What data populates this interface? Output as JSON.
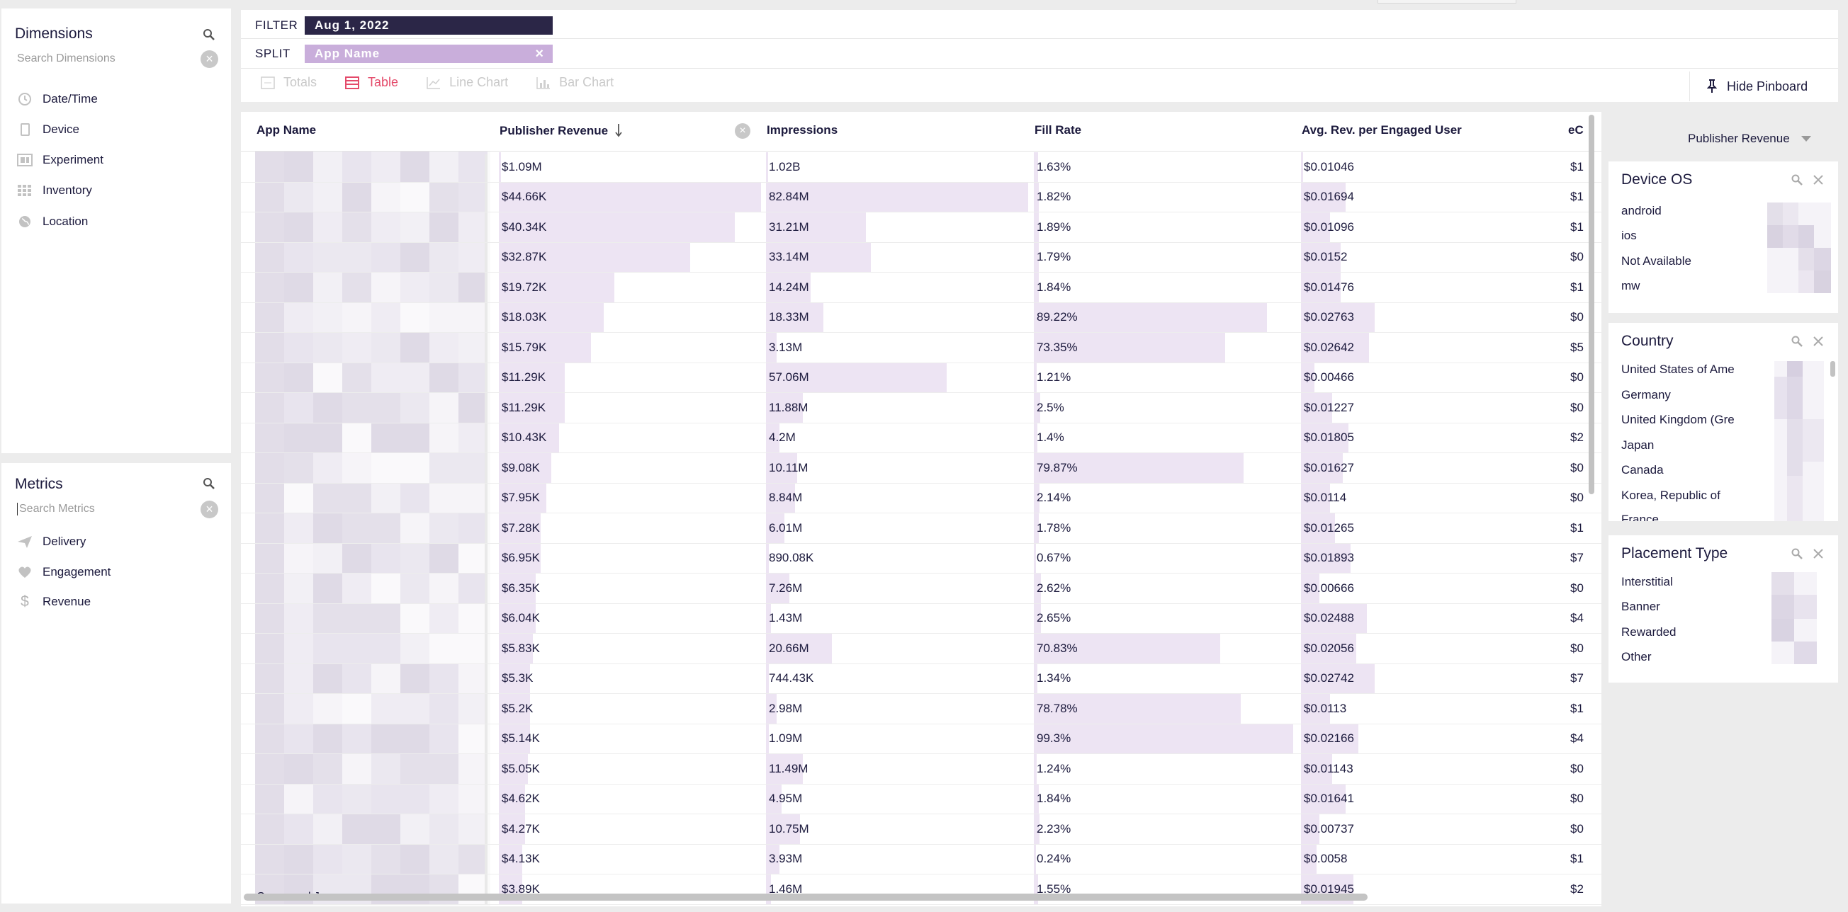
{
  "dimensions": {
    "title": "Dimensions",
    "search_placeholder": "Search Dimensions",
    "items": [
      {
        "label": "Date/Time",
        "icon": "clock-icon"
      },
      {
        "label": "Device",
        "icon": "device-icon"
      },
      {
        "label": "Experiment",
        "icon": "experiment-icon"
      },
      {
        "label": "Inventory",
        "icon": "grid-icon"
      },
      {
        "label": "Location",
        "icon": "globe-icon"
      }
    ]
  },
  "metrics": {
    "title": "Metrics",
    "search_placeholder": "Search Metrics",
    "items": [
      {
        "label": "Delivery",
        "icon": "send-icon"
      },
      {
        "label": "Engagement",
        "icon": "heart-icon"
      },
      {
        "label": "Revenue",
        "icon": "dollar-icon"
      }
    ]
  },
  "topbar": {
    "filter_label": "FILTER",
    "filter_value": "Aug 1, 2022",
    "split_label": "SPLIT",
    "split_value": "App Name",
    "viz_tabs": [
      {
        "label": "Totals",
        "active": false
      },
      {
        "label": "Table",
        "active": true
      },
      {
        "label": "Line Chart",
        "active": false
      },
      {
        "label": "Bar Chart",
        "active": false
      }
    ],
    "hide_pinboard": "Hide Pinboard"
  },
  "table": {
    "headers": [
      "App Name",
      "Publisher Revenue",
      "Impressions",
      "Fill Rate",
      "Avg. Rev. per Engaged User",
      "eC"
    ],
    "last_app_name": "Crossword Jam",
    "rows": [
      {
        "rev": "$1.09M",
        "imp": "1.02B",
        "fill": "1.63%",
        "avg": "$0.01046",
        "ec": "$1",
        "rev_frac": 0,
        "imp_frac": 0,
        "fill_frac": 0.016,
        "avg_frac": 0
      },
      {
        "rev": "$44.66K",
        "imp": "82.84M",
        "fill": "1.82%",
        "avg": "$0.01694",
        "ec": "$1",
        "rev_frac": 1.0,
        "imp_frac": 1.0,
        "fill_frac": 0.018,
        "avg_frac": 0.17
      },
      {
        "rev": "$40.34K",
        "imp": "31.21M",
        "fill": "1.89%",
        "avg": "$0.01096",
        "ec": "$1",
        "rev_frac": 0.9,
        "imp_frac": 0.38,
        "fill_frac": 0.019,
        "avg_frac": 0.11
      },
      {
        "rev": "$32.87K",
        "imp": "33.14M",
        "fill": "1.79%",
        "avg": "$0.0152",
        "ec": "$0",
        "rev_frac": 0.73,
        "imp_frac": 0.4,
        "fill_frac": 0.018,
        "avg_frac": 0.15
      },
      {
        "rev": "$19.72K",
        "imp": "14.24M",
        "fill": "1.84%",
        "avg": "$0.01476",
        "ec": "$1",
        "rev_frac": 0.44,
        "imp_frac": 0.17,
        "fill_frac": 0.018,
        "avg_frac": 0.15
      },
      {
        "rev": "$18.03K",
        "imp": "18.33M",
        "fill": "89.22%",
        "avg": "$0.02763",
        "ec": "$0",
        "rev_frac": 0.4,
        "imp_frac": 0.22,
        "fill_frac": 0.89,
        "avg_frac": 0.28
      },
      {
        "rev": "$15.79K",
        "imp": "3.13M",
        "fill": "73.35%",
        "avg": "$0.02642",
        "ec": "$5",
        "rev_frac": 0.35,
        "imp_frac": 0.04,
        "fill_frac": 0.73,
        "avg_frac": 0.26
      },
      {
        "rev": "$11.29K",
        "imp": "57.06M",
        "fill": "1.21%",
        "avg": "$0.00466",
        "ec": "$0",
        "rev_frac": 0.25,
        "imp_frac": 0.69,
        "fill_frac": 0.012,
        "avg_frac": 0.05
      },
      {
        "rev": "$11.29K",
        "imp": "11.88M",
        "fill": "2.5%",
        "avg": "$0.01227",
        "ec": "$0",
        "rev_frac": 0.25,
        "imp_frac": 0.14,
        "fill_frac": 0.025,
        "avg_frac": 0.12
      },
      {
        "rev": "$10.43K",
        "imp": "4.2M",
        "fill": "1.4%",
        "avg": "$0.01805",
        "ec": "$2",
        "rev_frac": 0.23,
        "imp_frac": 0.05,
        "fill_frac": 0.014,
        "avg_frac": 0.18
      },
      {
        "rev": "$9.08K",
        "imp": "10.11M",
        "fill": "79.87%",
        "avg": "$0.01627",
        "ec": "$0",
        "rev_frac": 0.2,
        "imp_frac": 0.12,
        "fill_frac": 0.8,
        "avg_frac": 0.16
      },
      {
        "rev": "$7.95K",
        "imp": "8.84M",
        "fill": "2.14%",
        "avg": "$0.0114",
        "ec": "$0",
        "rev_frac": 0.18,
        "imp_frac": 0.11,
        "fill_frac": 0.021,
        "avg_frac": 0.11
      },
      {
        "rev": "$7.28K",
        "imp": "6.01M",
        "fill": "1.78%",
        "avg": "$0.01265",
        "ec": "$1",
        "rev_frac": 0.16,
        "imp_frac": 0.07,
        "fill_frac": 0.018,
        "avg_frac": 0.13
      },
      {
        "rev": "$6.95K",
        "imp": "890.08K",
        "fill": "0.67%",
        "avg": "$0.01893",
        "ec": "$7",
        "rev_frac": 0.16,
        "imp_frac": 0.01,
        "fill_frac": 0.007,
        "avg_frac": 0.19
      },
      {
        "rev": "$6.35K",
        "imp": "7.26M",
        "fill": "2.62%",
        "avg": "$0.00666",
        "ec": "$0",
        "rev_frac": 0.14,
        "imp_frac": 0.09,
        "fill_frac": 0.026,
        "avg_frac": 0.07
      },
      {
        "rev": "$6.04K",
        "imp": "1.43M",
        "fill": "2.65%",
        "avg": "$0.02488",
        "ec": "$4",
        "rev_frac": 0.14,
        "imp_frac": 0.02,
        "fill_frac": 0.027,
        "avg_frac": 0.25
      },
      {
        "rev": "$5.83K",
        "imp": "20.66M",
        "fill": "70.83%",
        "avg": "$0.02056",
        "ec": "$0",
        "rev_frac": 0.13,
        "imp_frac": 0.25,
        "fill_frac": 0.71,
        "avg_frac": 0.21
      },
      {
        "rev": "$5.3K",
        "imp": "744.43K",
        "fill": "1.34%",
        "avg": "$0.02742",
        "ec": "$7",
        "rev_frac": 0.12,
        "imp_frac": 0.01,
        "fill_frac": 0.013,
        "avg_frac": 0.28
      },
      {
        "rev": "$5.2K",
        "imp": "2.98M",
        "fill": "78.78%",
        "avg": "$0.0113",
        "ec": "$1",
        "rev_frac": 0.12,
        "imp_frac": 0.04,
        "fill_frac": 0.79,
        "avg_frac": 0.11
      },
      {
        "rev": "$5.14K",
        "imp": "1.09M",
        "fill": "99.3%",
        "avg": "$0.02166",
        "ec": "$4",
        "rev_frac": 0.12,
        "imp_frac": 0.01,
        "fill_frac": 0.99,
        "avg_frac": 0.22
      },
      {
        "rev": "$5.05K",
        "imp": "11.49M",
        "fill": "1.24%",
        "avg": "$0.01143",
        "ec": "$0",
        "rev_frac": 0.11,
        "imp_frac": 0.14,
        "fill_frac": 0.012,
        "avg_frac": 0.12
      },
      {
        "rev": "$4.62K",
        "imp": "4.95M",
        "fill": "1.84%",
        "avg": "$0.01641",
        "ec": "$0",
        "rev_frac": 0.1,
        "imp_frac": 0.06,
        "fill_frac": 0.018,
        "avg_frac": 0.17
      },
      {
        "rev": "$4.27K",
        "imp": "10.75M",
        "fill": "2.23%",
        "avg": "$0.00737",
        "ec": "$0",
        "rev_frac": 0.1,
        "imp_frac": 0.13,
        "fill_frac": 0.022,
        "avg_frac": 0.07
      },
      {
        "rev": "$4.13K",
        "imp": "3.93M",
        "fill": "0.24%",
        "avg": "$0.0058",
        "ec": "$1",
        "rev_frac": 0.09,
        "imp_frac": 0.05,
        "fill_frac": 0.002,
        "avg_frac": 0.06
      },
      {
        "rev": "$3.89K",
        "imp": "1.46M",
        "fill": "1.55%",
        "avg": "$0.01945",
        "ec": "$2",
        "rev_frac": 0.09,
        "imp_frac": 0.02,
        "fill_frac": 0.016,
        "avg_frac": 0.2
      }
    ]
  },
  "pinboard": {
    "measure": "Publisher Revenue",
    "cards": [
      {
        "title": "Device OS",
        "items": [
          "android",
          "ios",
          "Not Available",
          "mw"
        ]
      },
      {
        "title": "Country",
        "items": [
          "United States of Ame",
          "Germany",
          "United Kingdom (Gre",
          "Japan",
          "Canada",
          "Korea, Republic of",
          "France"
        ]
      },
      {
        "title": "Placement Type",
        "items": [
          "Interstitial",
          "Banner",
          "Rewarded",
          "Other"
        ]
      }
    ]
  },
  "colors": {
    "accent": "#e44a6a",
    "filter_pill": "#2b2647",
    "split_pill": "#c9aedb",
    "bar": "#ede4f3"
  }
}
